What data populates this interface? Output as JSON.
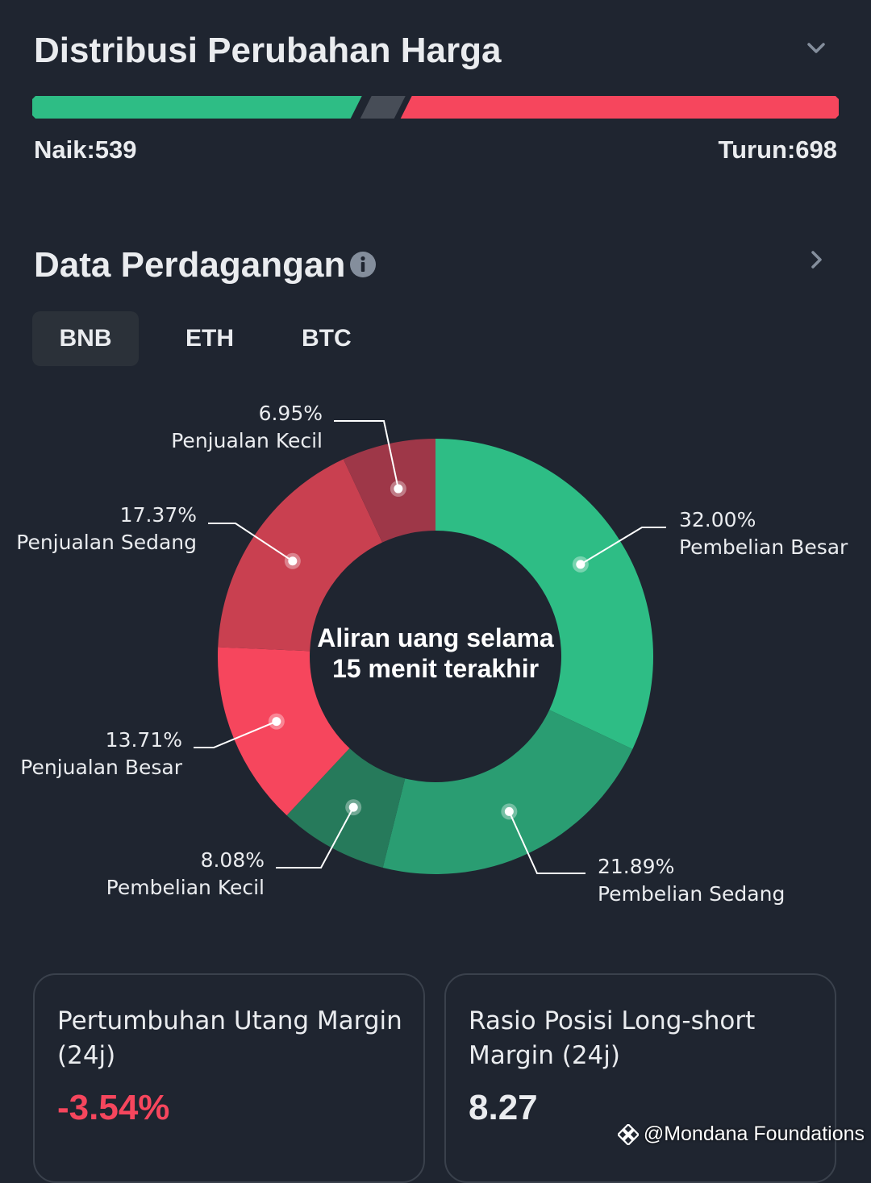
{
  "price_distribution": {
    "title": "Distribusi Perubahan Harga",
    "rise_label": "Naik:539",
    "fall_label": "Turun:698",
    "rise_count": 539,
    "fall_count": 698,
    "colors": {
      "rise": "#2ebd85",
      "fall": "#f6465d",
      "neutral": "#474d57"
    }
  },
  "trading_data": {
    "title": "Data Perdagangan",
    "tabs": [
      {
        "label": "BNB",
        "active": true
      },
      {
        "label": "ETH",
        "active": false
      },
      {
        "label": "BTC",
        "active": false
      }
    ]
  },
  "chart_data": {
    "type": "pie",
    "title": "Aliran uang selama 15 menit terakhir",
    "title_lines": [
      "Aliran uang selama",
      "15 menit terakhir"
    ],
    "series": [
      {
        "name": "Pembelian Besar",
        "value": 32.0,
        "label": "32.00%",
        "color": "#2ebd85"
      },
      {
        "name": "Pembelian Sedang",
        "value": 21.89,
        "label": "21.89%",
        "color": "#2a9d72"
      },
      {
        "name": "Pembelian Kecil",
        "value": 8.08,
        "label": "8.08%",
        "color": "#267a5b"
      },
      {
        "name": "Penjualan Besar",
        "value": 13.71,
        "label": "13.71%",
        "color": "#f6465d"
      },
      {
        "name": "Penjualan Sedang",
        "value": 17.37,
        "label": "17.37%",
        "color": "#c94050"
      },
      {
        "name": "Penjualan Kecil",
        "value": 6.95,
        "label": "6.95%",
        "color": "#9e3748"
      }
    ]
  },
  "cards": [
    {
      "title": "Pertumbuhan Utang Margin (24j)",
      "value": "-3.54%"
    },
    {
      "title": "Rasio Posisi Long-short Margin (24j)",
      "value": "8.27"
    }
  ],
  "watermark": "@Mondana Foundations"
}
